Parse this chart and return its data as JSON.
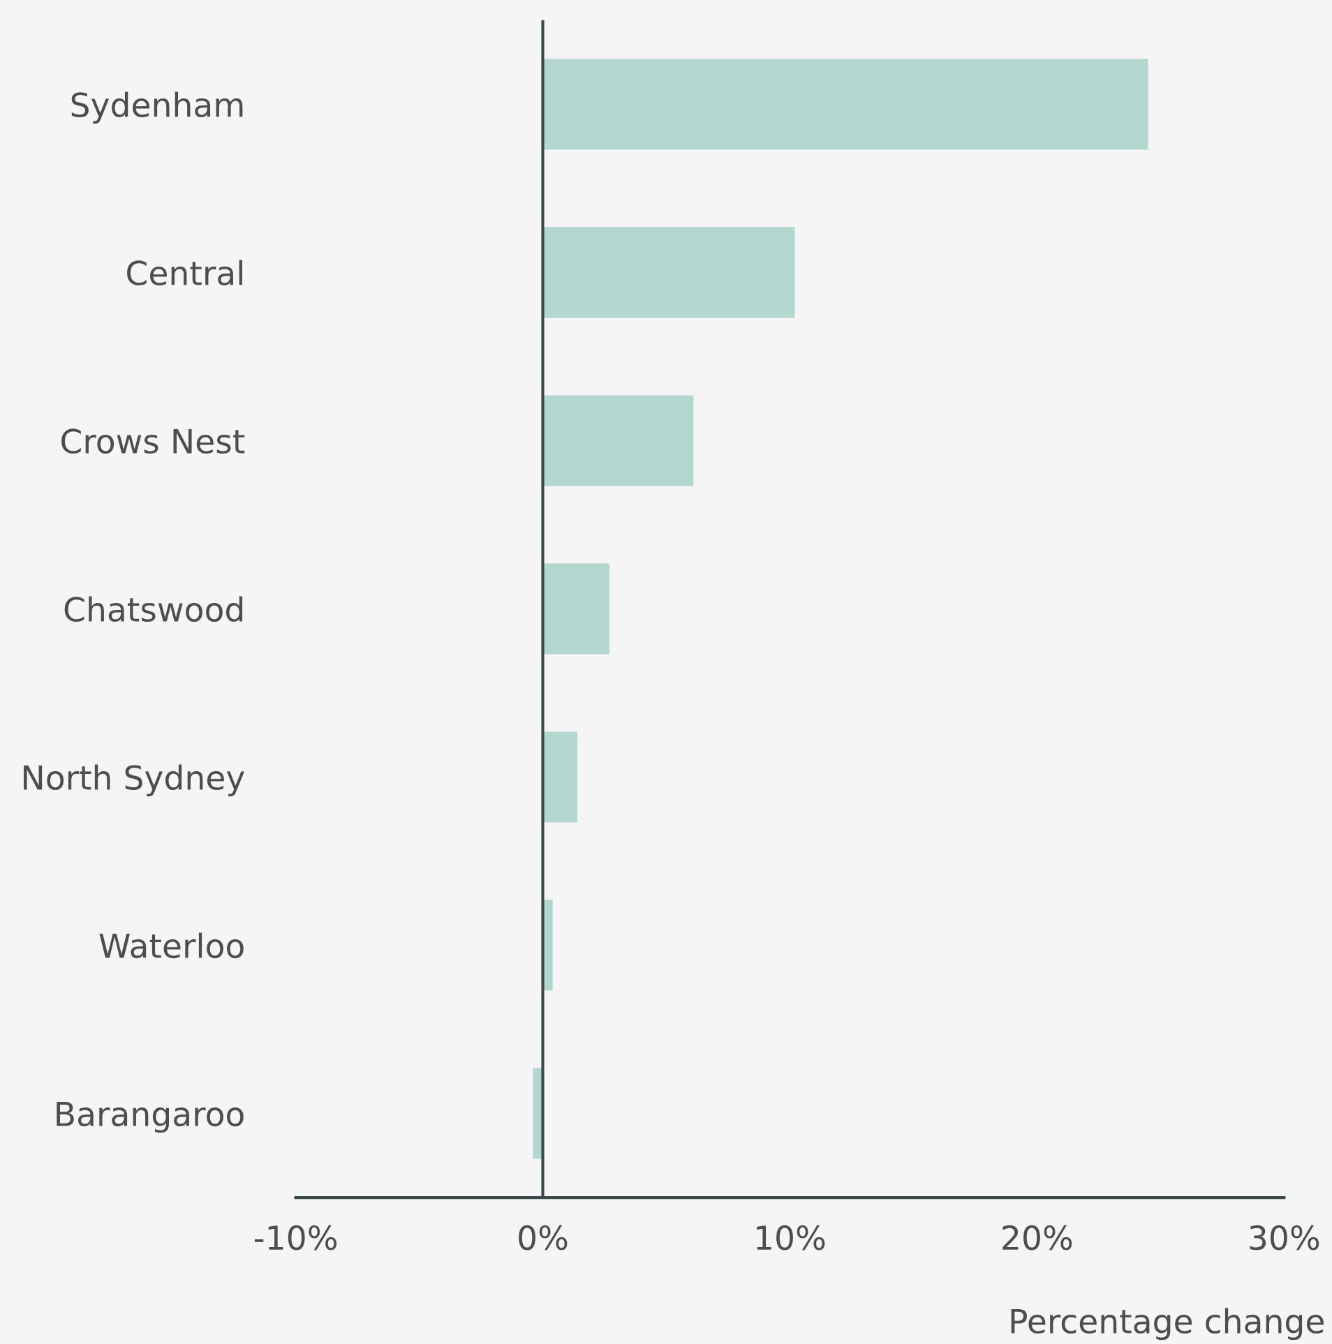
{
  "chart_data": {
    "type": "bar",
    "orientation": "horizontal",
    "xlabel": "Percentage change",
    "categories": [
      "Sydenham",
      "Central",
      "Crows Nest",
      "Chatswood",
      "North Sydney",
      "Waterloo",
      "Barangaroo"
    ],
    "values": [
      24.5,
      10.2,
      6.1,
      2.7,
      1.4,
      0.4,
      -0.4
    ],
    "color": "#b3d7cf",
    "xlim": [
      -10,
      30
    ],
    "xticks": [
      {
        "value": -10,
        "label": "-10%"
      },
      {
        "value": 0,
        "label": "0%"
      },
      {
        "value": 10,
        "label": "10%"
      },
      {
        "value": 20,
        "label": "20%"
      },
      {
        "value": 30,
        "label": "30%"
      }
    ],
    "ref_lines": [
      {
        "axis": "x",
        "value": 0,
        "color": "#3a4a48"
      }
    ],
    "grid": false
  }
}
